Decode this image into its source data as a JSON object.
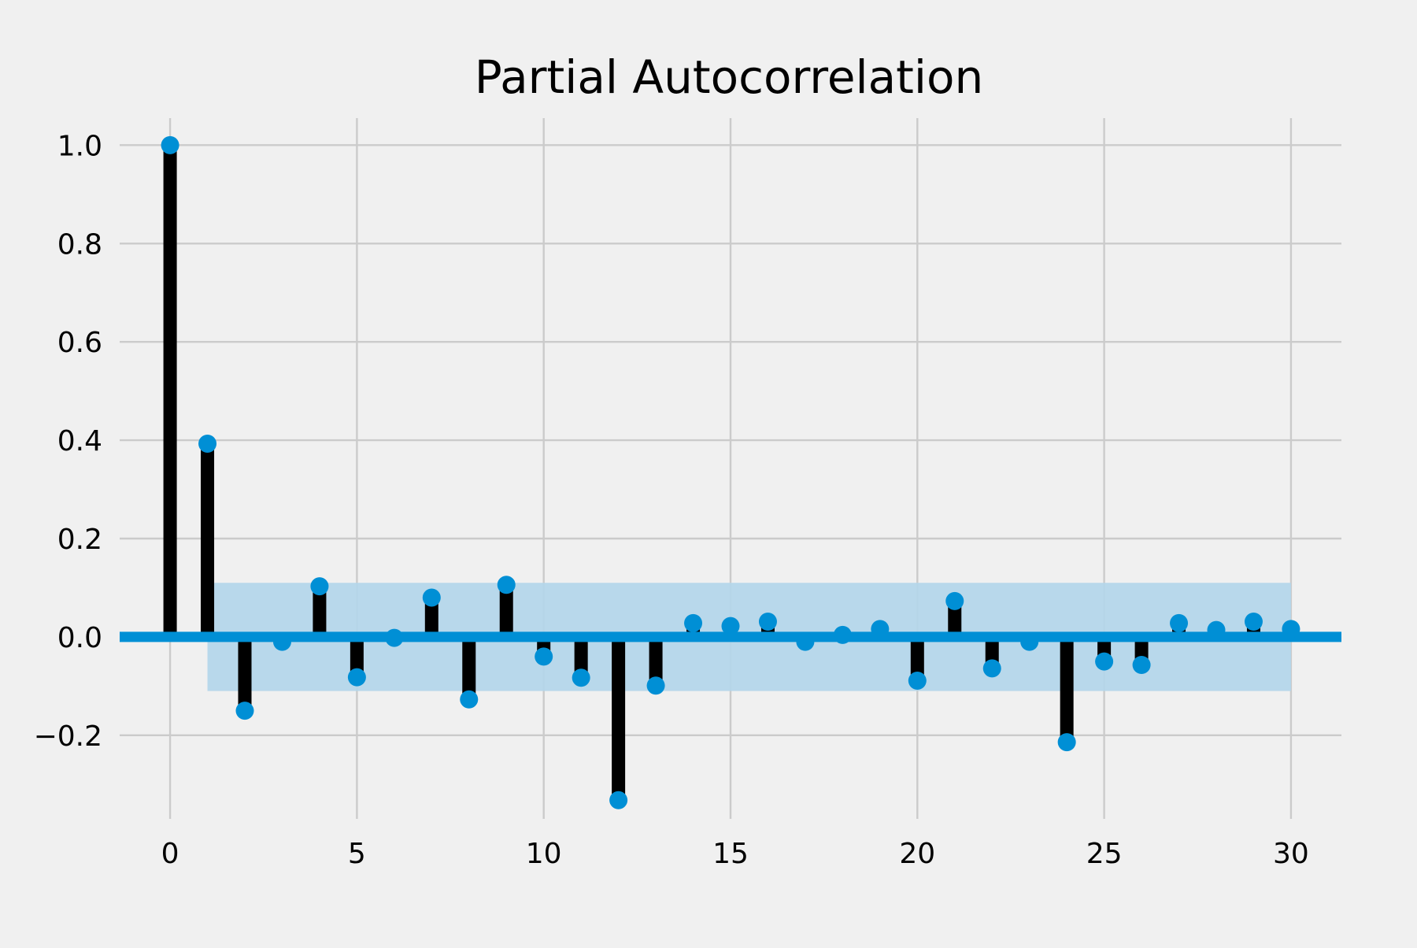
{
  "chart_data": {
    "type": "stem",
    "title": "Partial Autocorrelation",
    "xlabel": "",
    "ylabel": "",
    "x": [
      0,
      1,
      2,
      3,
      4,
      5,
      6,
      7,
      8,
      9,
      10,
      11,
      12,
      13,
      14,
      15,
      16,
      17,
      18,
      19,
      20,
      21,
      22,
      23,
      24,
      25,
      26,
      27,
      28,
      29,
      30
    ],
    "values": [
      1.0,
      0.393,
      -0.15,
      -0.01,
      0.103,
      -0.082,
      -0.002,
      0.08,
      -0.127,
      0.106,
      -0.04,
      -0.083,
      -0.332,
      -0.099,
      0.028,
      0.022,
      0.031,
      -0.01,
      0.004,
      0.016,
      -0.089,
      0.073,
      -0.064,
      -0.01,
      -0.214,
      -0.05,
      -0.057,
      0.028,
      0.014,
      0.031,
      0.016
    ],
    "confidence_interval": {
      "x_start": 1,
      "x_end": 30,
      "lower": -0.11,
      "upper": 0.11
    },
    "xlim": [
      -1.35,
      31.35
    ],
    "ylim": [
      -0.37,
      1.055
    ],
    "x_ticks": [
      0,
      5,
      10,
      15,
      20,
      25,
      30
    ],
    "x_tick_labels": [
      "0",
      "5",
      "10",
      "15",
      "20",
      "25",
      "30"
    ],
    "y_ticks": [
      -0.2,
      0.0,
      0.2,
      0.4,
      0.6,
      0.8,
      1.0
    ],
    "y_tick_labels": [
      "−0.2",
      "0.0",
      "0.2",
      "0.4",
      "0.6",
      "0.8",
      "1.0"
    ],
    "grid": true,
    "colors": {
      "background": "#f0f0f0",
      "grid": "#cbcbcb",
      "stem": "#000000",
      "marker": "#008fd5",
      "baseline": "#008fd5",
      "confidence_band": "#b3d6ea"
    }
  }
}
